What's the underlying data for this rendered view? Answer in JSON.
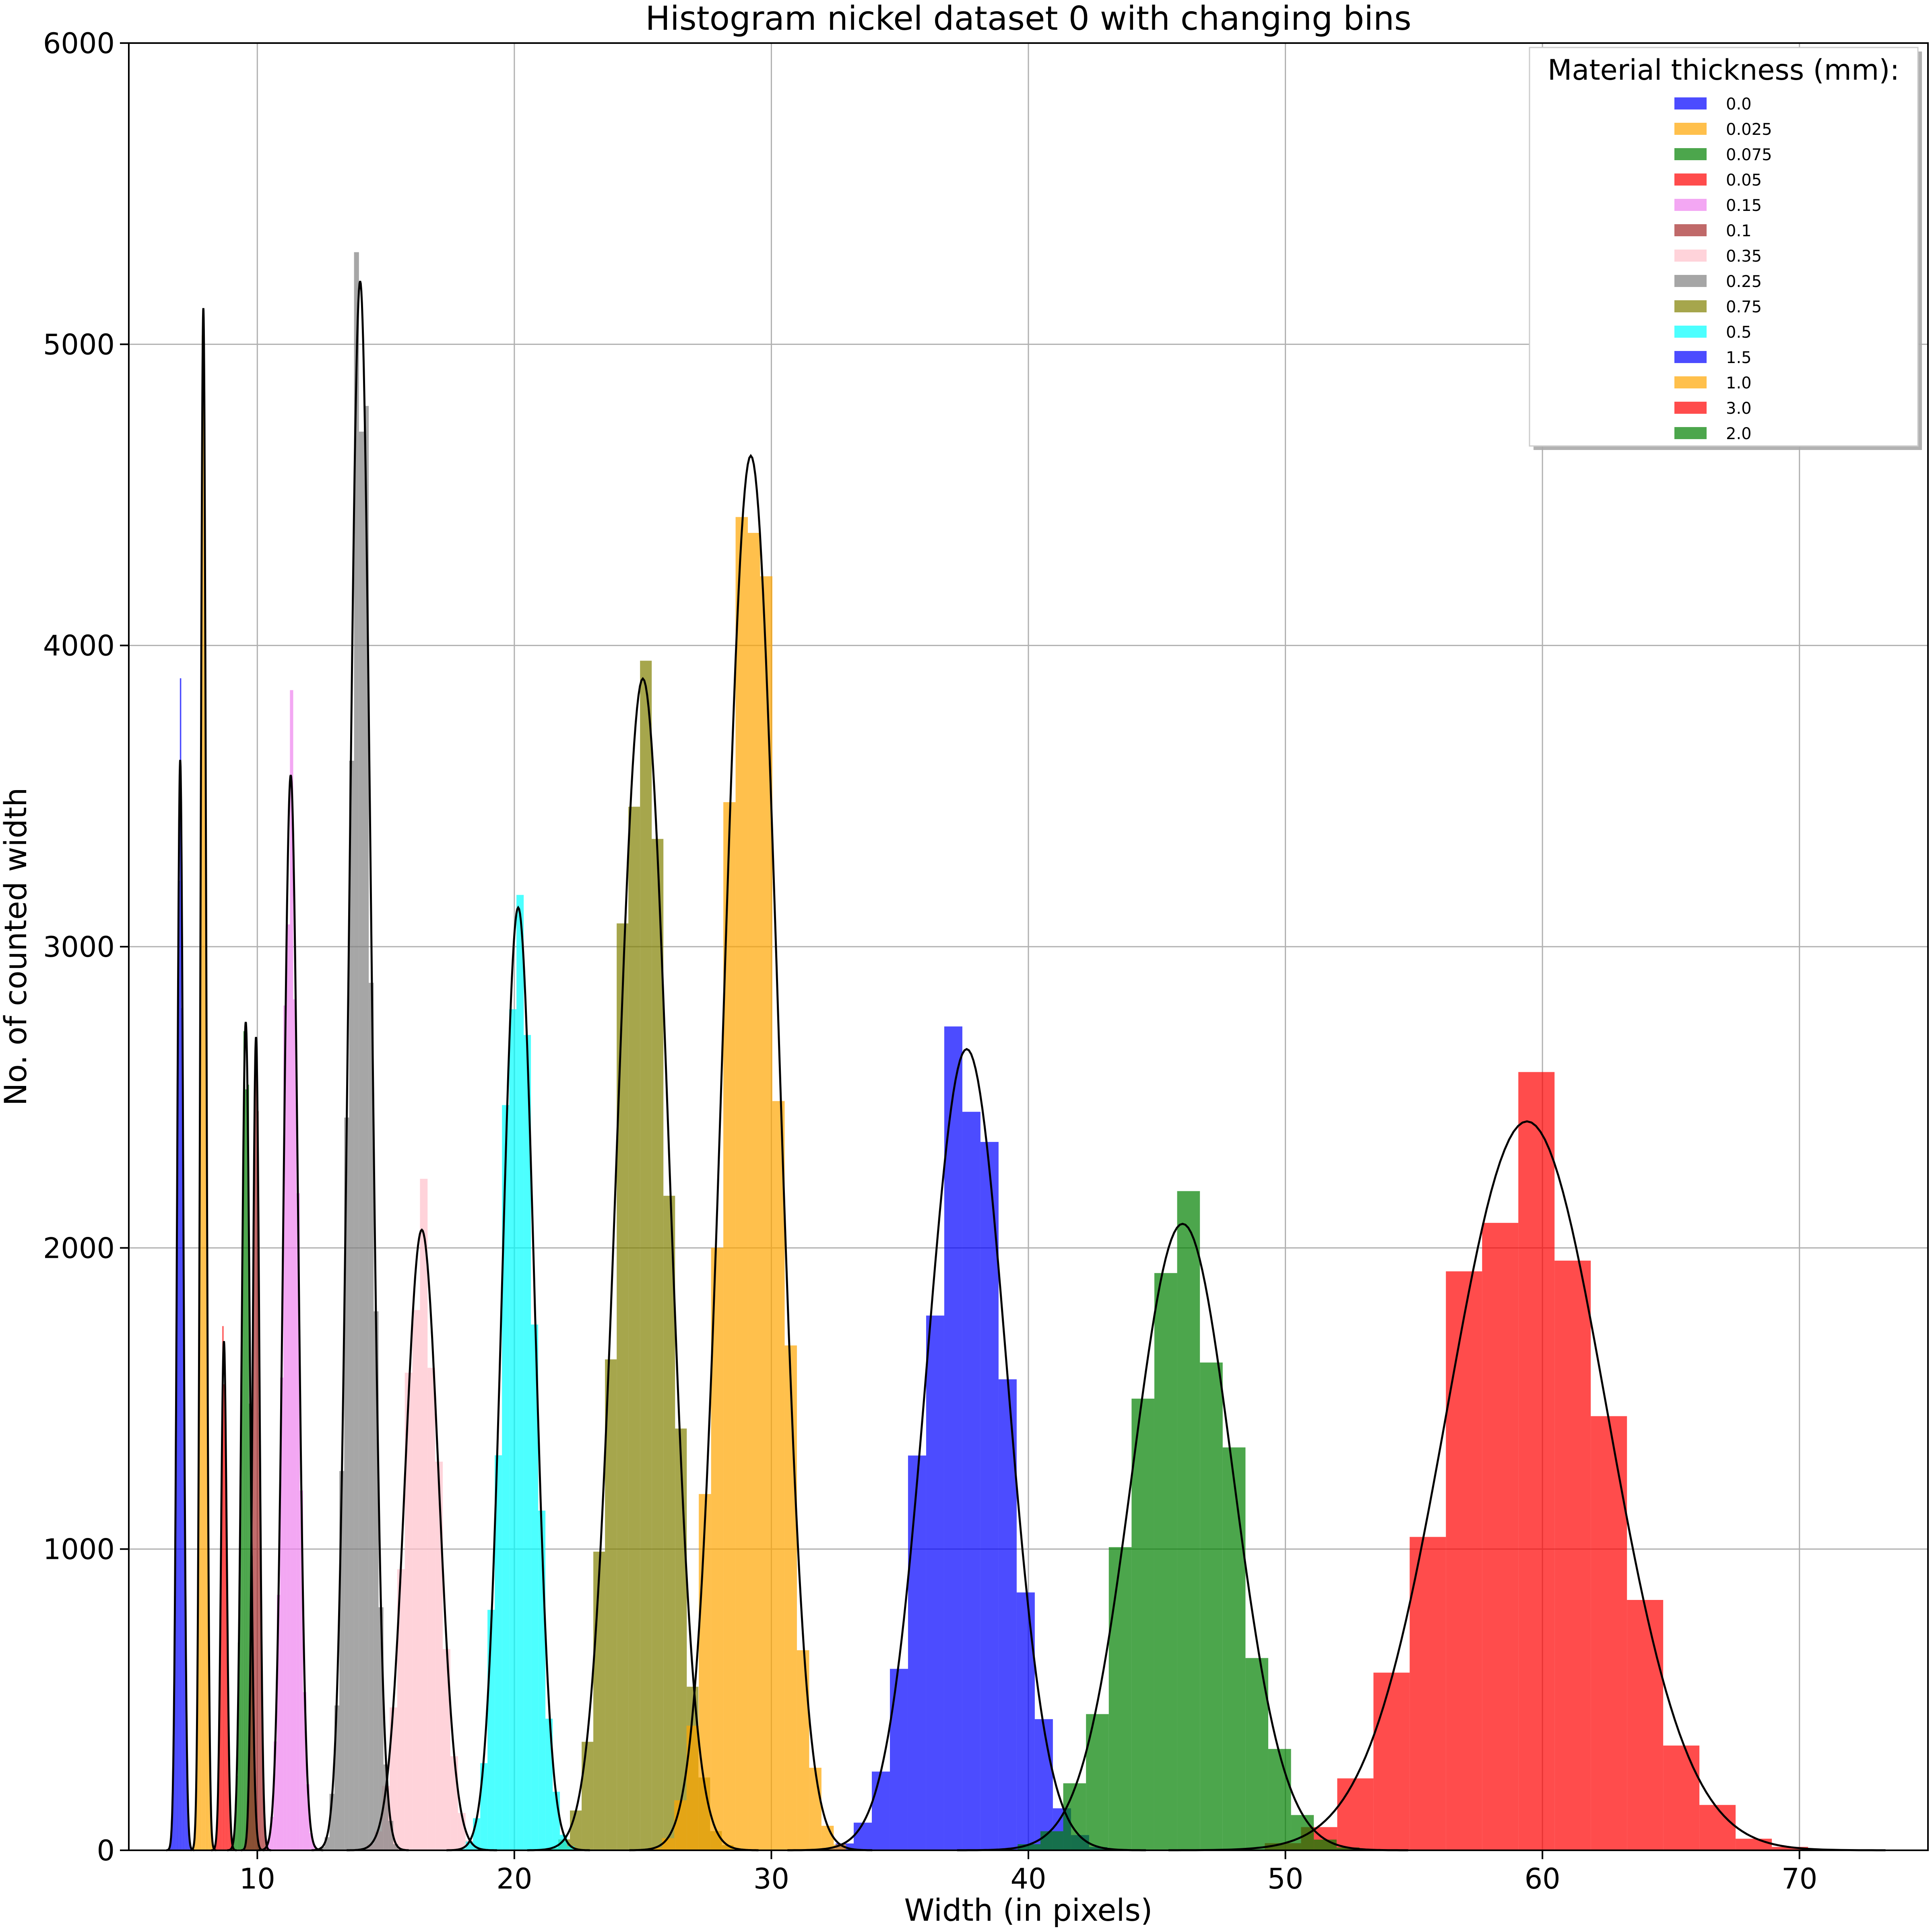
{
  "chart_data": {
    "type": "bar",
    "title": "Histogram nickel dataset 0 with changing bins",
    "xlabel": "Width (in pixels)",
    "ylabel": "No. of counted width",
    "xlim": [
      5,
      75
    ],
    "ylim": [
      0,
      6000
    ],
    "xticks": [
      10,
      20,
      30,
      40,
      50,
      60,
      70
    ],
    "yticks": [
      0,
      1000,
      2000,
      3000,
      4000,
      5000,
      6000
    ],
    "grid": true,
    "legend": {
      "title": "Material thickness (mm):",
      "placement": "upper right"
    },
    "series": [
      {
        "name": "0.0",
        "color": "#0000ff",
        "mean": 7.0,
        "sd": 0.12,
        "peak": 3620
      },
      {
        "name": "0.025",
        "color": "#ffa500",
        "mean": 7.9,
        "sd": 0.11,
        "peak": 5120
      },
      {
        "name": "0.075",
        "color": "#008000",
        "mean": 9.55,
        "sd": 0.16,
        "peak": 2750
      },
      {
        "name": "0.05",
        "color": "#ff0000",
        "mean": 8.7,
        "sd": 0.11,
        "peak": 1690
      },
      {
        "name": "0.15",
        "color": "#ee82ee",
        "mean": 11.3,
        "sd": 0.28,
        "peak": 3570
      },
      {
        "name": "0.1",
        "color": "#a52a2a",
        "mean": 9.95,
        "sd": 0.13,
        "peak": 2700
      },
      {
        "name": "0.35",
        "color": "#ffc0cb",
        "mean": 16.4,
        "sd": 0.65,
        "peak": 2060
      },
      {
        "name": "0.25",
        "color": "#808080",
        "mean": 14.0,
        "sd": 0.42,
        "peak": 5210
      },
      {
        "name": "0.75",
        "color": "#808000",
        "mean": 25.0,
        "sd": 1.0,
        "peak": 3890
      },
      {
        "name": "0.5",
        "color": "#00ffff",
        "mean": 20.15,
        "sd": 0.62,
        "peak": 3130
      },
      {
        "name": "1.5",
        "color": "#0000ff",
        "mean": 37.6,
        "sd": 1.55,
        "peak": 2660
      },
      {
        "name": "1.0",
        "color": "#ffa500",
        "mean": 29.2,
        "sd": 1.05,
        "peak": 4630
      },
      {
        "name": "3.0",
        "color": "#ff0000",
        "mean": 59.4,
        "sd": 3.1,
        "peak": 2420
      },
      {
        "name": "2.0",
        "color": "#008000",
        "mean": 46.0,
        "sd": 1.95,
        "peak": 2080
      }
    ]
  }
}
